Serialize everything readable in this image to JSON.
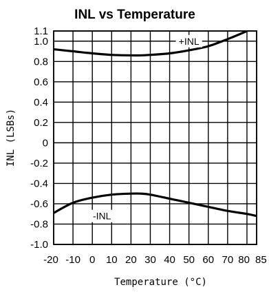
{
  "chart_data": {
    "type": "line",
    "title": "INL vs Temperature",
    "xlabel": "Temperature (°C)",
    "ylabel": "INL (LSBs)",
    "xlim": [
      -20,
      85
    ],
    "ylim": [
      -1.0,
      1.1
    ],
    "grid": true,
    "xticks": [
      -20,
      -10,
      0,
      10,
      20,
      30,
      40,
      50,
      60,
      70,
      80,
      85
    ],
    "xtick_labels": [
      "-20",
      "-10",
      "0",
      "10",
      "20",
      "30",
      "40",
      "50",
      "60",
      "70",
      "80",
      "85"
    ],
    "yticks": [
      1.1,
      1.0,
      0.8,
      0.6,
      0.4,
      0.2,
      0,
      -0.2,
      -0.4,
      -0.6,
      -0.8,
      -1.0
    ],
    "ytick_labels": [
      "1.1",
      "1.0",
      "0.8",
      "0.6",
      "0.4",
      "0.2",
      "0",
      "-0.2",
      "-0.4",
      "-0.6",
      "-0.8",
      "-1.0"
    ],
    "series": [
      {
        "name": "+INL",
        "x": [
          -20,
          -10,
          0,
          10,
          20,
          25,
          30,
          40,
          50,
          60,
          70,
          80,
          85
        ],
        "y": [
          0.92,
          0.9,
          0.88,
          0.865,
          0.86,
          0.86,
          0.865,
          0.88,
          0.91,
          0.95,
          1.02,
          1.1,
          1.15
        ]
      },
      {
        "name": "-INL",
        "x": [
          -20,
          -10,
          0,
          10,
          20,
          25,
          30,
          40,
          50,
          60,
          70,
          80,
          85
        ],
        "y": [
          -0.69,
          -0.59,
          -0.54,
          -0.51,
          -0.5,
          -0.5,
          -0.51,
          -0.55,
          -0.59,
          -0.63,
          -0.67,
          -0.7,
          -0.72
        ]
      }
    ]
  }
}
